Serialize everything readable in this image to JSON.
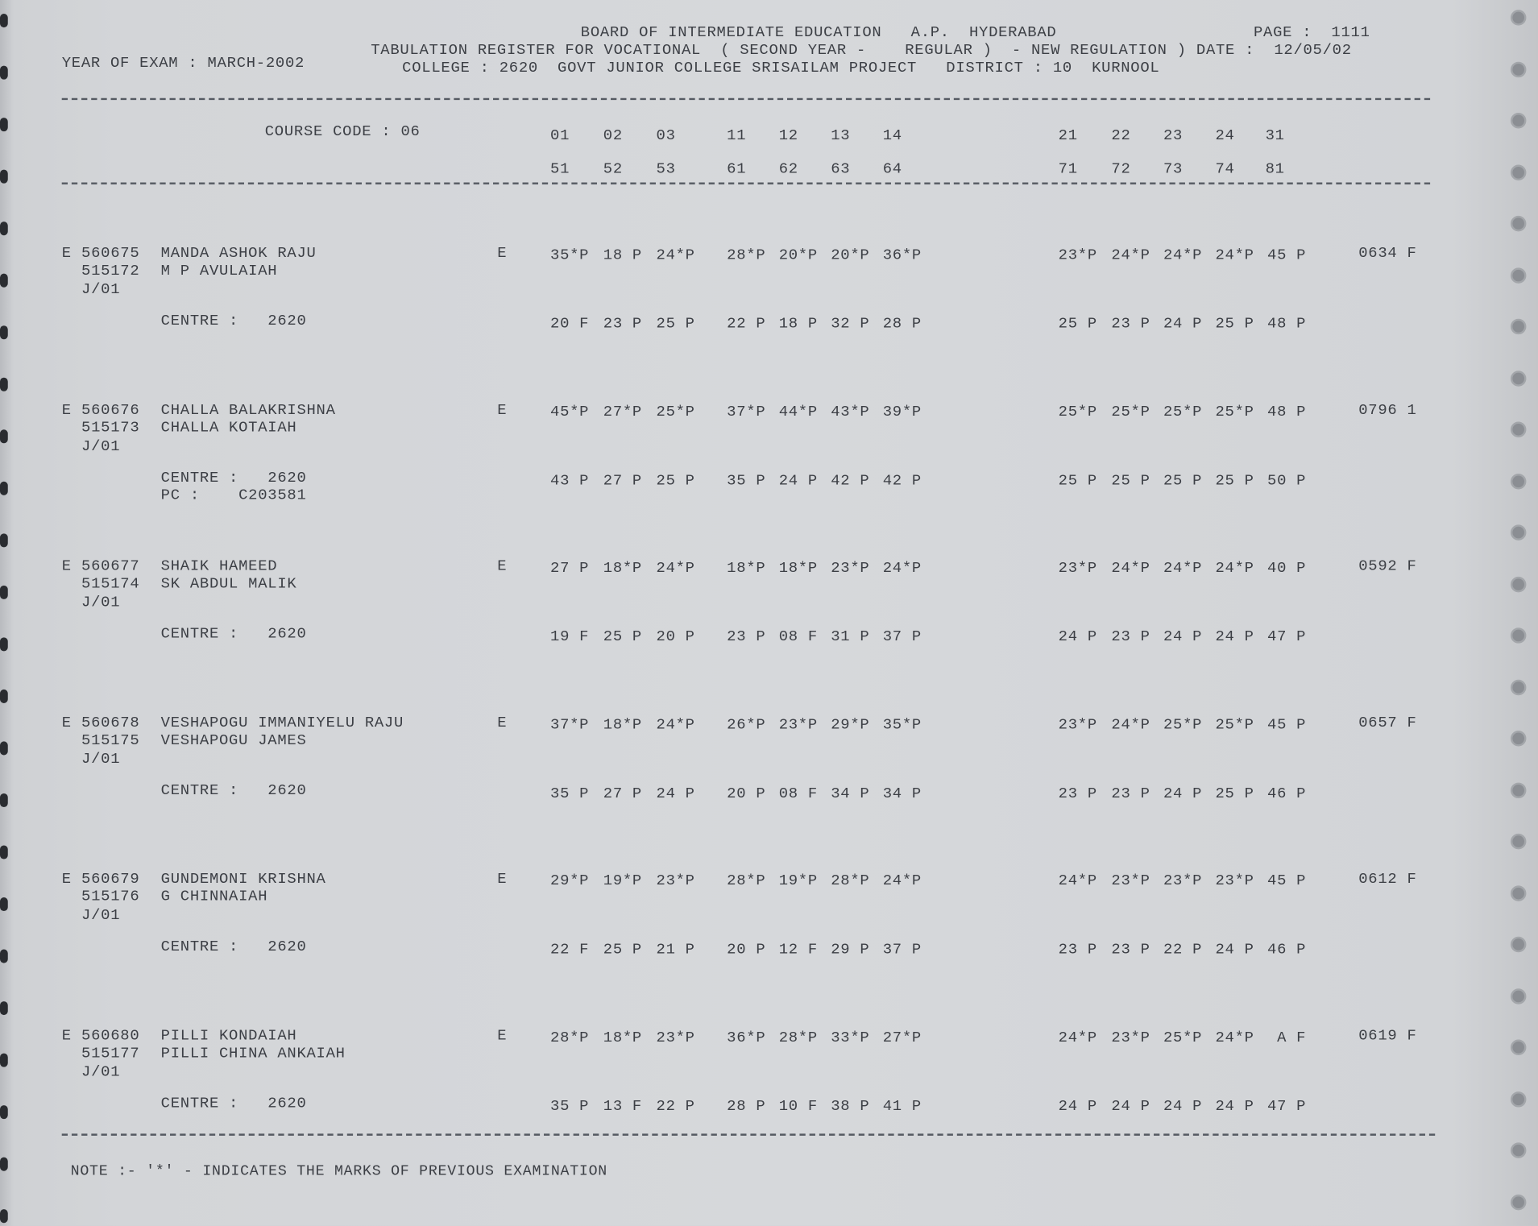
{
  "header": {
    "board": "BOARD OF INTERMEDIATE EDUCATION   A.P.  HYDERABAD",
    "page_label": "PAGE :  1111",
    "register": "TABULATION REGISTER FOR VOCATIONAL  ( SECOND YEAR -    REGULAR )  - NEW REGULATION ) DATE :  12/05/02",
    "year_of_exam": "YEAR OF EXAM : MARCH-2002",
    "college": "COLLEGE : 2620  GOVT JUNIOR COLLEGE SRISAILAM PROJECT   DISTRICT : 10  KURNOOL"
  },
  "course_code": "COURSE CODE : 06",
  "subject_codes_row1": [
    "01",
    "02",
    "03",
    "11",
    "12",
    "13",
    "14",
    "21",
    "22",
    "23",
    "24",
    "31"
  ],
  "subject_codes_row2": [
    "51",
    "52",
    "53",
    "61",
    "62",
    "63",
    "64",
    "71",
    "72",
    "73",
    "74",
    "81"
  ],
  "students": [
    {
      "prefix": "E",
      "hall_ticket": "560675",
      "name": "MANDA ASHOK RAJU",
      "reg_no": "515172",
      "father": "M P AVULAIAH",
      "group": "J/01",
      "medium": "E",
      "marks1": [
        "35*P",
        "18 P",
        "24*P",
        "28*P",
        "20*P",
        "20*P",
        "36*P",
        "23*P",
        "24*P",
        "24*P",
        "24*P",
        "45 P"
      ],
      "total": "0634 F",
      "centre": "CENTRE :   2620",
      "pc": "",
      "marks2": [
        "20 F",
        "23 P",
        "25 P",
        "22 P",
        "18 P",
        "32 P",
        "28 P",
        "25 P",
        "23 P",
        "24 P",
        "25 P",
        "48 P"
      ]
    },
    {
      "prefix": "E",
      "hall_ticket": "560676",
      "name": "CHALLA BALAKRISHNA",
      "reg_no": "515173",
      "father": "CHALLA KOTAIAH",
      "group": "J/01",
      "medium": "E",
      "marks1": [
        "45*P",
        "27*P",
        "25*P",
        "37*P",
        "44*P",
        "43*P",
        "39*P",
        "25*P",
        "25*P",
        "25*P",
        "25*P",
        "48 P"
      ],
      "total": "0796 1",
      "centre": "CENTRE :   2620",
      "pc": "PC :    C203581",
      "marks2": [
        "43 P",
        "27 P",
        "25 P",
        "35 P",
        "24 P",
        "42 P",
        "42 P",
        "25 P",
        "25 P",
        "25 P",
        "25 P",
        "50 P"
      ]
    },
    {
      "prefix": "E",
      "hall_ticket": "560677",
      "name": "SHAIK HAMEED",
      "reg_no": "515174",
      "father": "SK ABDUL MALIK",
      "group": "J/01",
      "medium": "E",
      "marks1": [
        "27 P",
        "18*P",
        "24*P",
        "18*P",
        "18*P",
        "23*P",
        "24*P",
        "23*P",
        "24*P",
        "24*P",
        "24*P",
        "40 P"
      ],
      "total": "0592 F",
      "centre": "CENTRE :   2620",
      "pc": "",
      "marks2": [
        "19 F",
        "25 P",
        "20 P",
        "23 P",
        "08 F",
        "31 P",
        "37 P",
        "24 P",
        "23 P",
        "24 P",
        "24 P",
        "47 P"
      ]
    },
    {
      "prefix": "E",
      "hall_ticket": "560678",
      "name": "VESHAPOGU IMMANIYELU RAJU",
      "reg_no": "515175",
      "father": "VESHAPOGU JAMES",
      "group": "J/01",
      "medium": "E",
      "marks1": [
        "37*P",
        "18*P",
        "24*P",
        "26*P",
        "23*P",
        "29*P",
        "35*P",
        "23*P",
        "24*P",
        "25*P",
        "25*P",
        "45 P"
      ],
      "total": "0657 F",
      "centre": "CENTRE :   2620",
      "pc": "",
      "marks2": [
        "35 P",
        "27 P",
        "24 P",
        "20 P",
        "08 F",
        "34 P",
        "34 P",
        "23 P",
        "23 P",
        "24 P",
        "25 P",
        "46 P"
      ]
    },
    {
      "prefix": "E",
      "hall_ticket": "560679",
      "name": "GUNDEMONI KRISHNA",
      "reg_no": "515176",
      "father": "G CHINNAIAH",
      "group": "J/01",
      "medium": "E",
      "marks1": [
        "29*P",
        "19*P",
        "23*P",
        "28*P",
        "19*P",
        "28*P",
        "24*P",
        "24*P",
        "23*P",
        "23*P",
        "23*P",
        "45 P"
      ],
      "total": "0612 F",
      "centre": "CENTRE :   2620",
      "pc": "",
      "marks2": [
        "22 F",
        "25 P",
        "21 P",
        "20 P",
        "12 F",
        "29 P",
        "37 P",
        "23 P",
        "23 P",
        "22 P",
        "24 P",
        "46 P"
      ]
    },
    {
      "prefix": "E",
      "hall_ticket": "560680",
      "name": "PILLI KONDAIAH",
      "reg_no": "515177",
      "father": "PILLI CHINA ANKAIAH",
      "group": "J/01",
      "medium": "E",
      "marks1": [
        "28*P",
        "18*P",
        "23*P",
        "36*P",
        "28*P",
        "33*P",
        "27*P",
        "24*P",
        "23*P",
        "25*P",
        "24*P",
        " A F"
      ],
      "total": "0619 F",
      "centre": "CENTRE :   2620",
      "pc": "",
      "marks2": [
        "35 P",
        "13 F",
        "22 P",
        "28 P",
        "10 F",
        "38 P",
        "41 P",
        "24 P",
        "24 P",
        "24 P",
        "24 P",
        "47 P"
      ]
    }
  ],
  "note": "NOTE :- '*' - INDICATES THE MARKS OF PREVIOUS EXAMINATION"
}
